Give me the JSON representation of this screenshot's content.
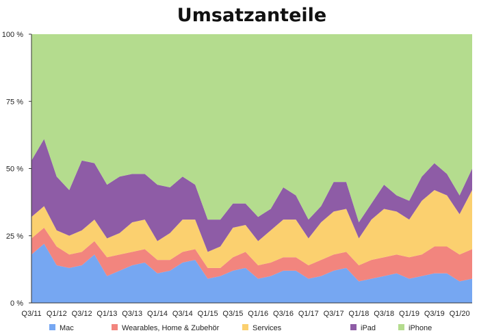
{
  "chart_data": {
    "type": "area",
    "stacked": true,
    "percent": true,
    "title": "Umsatzanteile",
    "xlabel": "",
    "ylabel": "",
    "ylim": [
      0,
      100
    ],
    "y_ticks": [
      "0 %",
      "25 %",
      "50 %",
      "75 %",
      "100 %"
    ],
    "y_tick_values": [
      0,
      25,
      50,
      75,
      100
    ],
    "grid": false,
    "legend_position": "bottom",
    "x": [
      "Q3/11",
      "Q4/11",
      "Q1/12",
      "Q2/12",
      "Q3/12",
      "Q4/12",
      "Q1/13",
      "Q2/13",
      "Q3/13",
      "Q4/13",
      "Q1/14",
      "Q2/14",
      "Q3/14",
      "Q4/14",
      "Q1/15",
      "Q2/15",
      "Q3/15",
      "Q4/15",
      "Q1/16",
      "Q2/16",
      "Q3/16",
      "Q4/16",
      "Q1/17",
      "Q2/17",
      "Q3/17",
      "Q4/17",
      "Q1/18",
      "Q2/18",
      "Q3/18",
      "Q4/18",
      "Q1/19",
      "Q2/19",
      "Q3/19",
      "Q4/19",
      "Q1/20",
      "Q2/20"
    ],
    "x_tick_labels": [
      "Q3/11",
      "Q1/12",
      "Q3/12",
      "Q1/13",
      "Q3/13",
      "Q1/14",
      "Q3/14",
      "Q1/15",
      "Q3/15",
      "Q1/16",
      "Q3/16",
      "Q1/17",
      "Q3/17",
      "Q1/18",
      "Q3/18",
      "Q1/19",
      "Q3/19",
      "Q1/20"
    ],
    "series": [
      {
        "name": "Mac",
        "color": "#76a7f2",
        "values": [
          18,
          22,
          14,
          13,
          14,
          18,
          10,
          12,
          14,
          15,
          11,
          12,
          15,
          16,
          9,
          10,
          12,
          13,
          9,
          10,
          12,
          12,
          9,
          10,
          12,
          13,
          8,
          9,
          10,
          11,
          9,
          10,
          11,
          11,
          8,
          9
        ]
      },
      {
        "name": "Wearables, Home & Zubehör",
        "color": "#f2857e",
        "values": [
          6,
          6,
          7,
          5,
          5,
          5,
          7,
          6,
          5,
          5,
          5,
          4,
          4,
          4,
          4,
          3,
          5,
          6,
          5,
          5,
          5,
          5,
          5,
          6,
          6,
          6,
          6,
          7,
          7,
          7,
          8,
          8,
          10,
          10,
          10,
          11
        ]
      },
      {
        "name": "Services",
        "color": "#fbd06f",
        "values": [
          8,
          8,
          6,
          7,
          8,
          8,
          7,
          8,
          11,
          11,
          7,
          10,
          12,
          11,
          6,
          8,
          11,
          10,
          9,
          12,
          14,
          14,
          10,
          14,
          16,
          16,
          10,
          15,
          18,
          16,
          14,
          20,
          21,
          19,
          15,
          22
        ]
      },
      {
        "name": "iPad",
        "color": "#8e5ca6",
        "values": [
          21,
          25,
          20,
          17,
          26,
          21,
          20,
          21,
          18,
          17,
          21,
          17,
          16,
          13,
          12,
          10,
          9,
          8,
          9,
          8,
          12,
          9,
          7,
          6,
          11,
          10,
          6,
          6,
          9,
          6,
          7,
          9,
          10,
          8,
          7,
          8
        ]
      },
      {
        "name": "iPhone",
        "color": "#b4dc8e",
        "values": [
          47,
          39,
          53,
          58,
          47,
          48,
          56,
          53,
          52,
          52,
          56,
          57,
          53,
          56,
          69,
          69,
          63,
          63,
          68,
          65,
          57,
          60,
          69,
          64,
          55,
          55,
          70,
          63,
          56,
          60,
          62,
          53,
          48,
          52,
          60,
          50
        ]
      }
    ]
  }
}
